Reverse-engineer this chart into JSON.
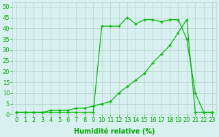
{
  "line1_x": [
    0,
    1,
    2,
    3,
    4,
    5,
    6,
    7,
    8,
    9,
    10,
    11,
    12,
    13,
    14,
    15,
    16,
    17,
    18,
    19,
    20,
    21,
    22,
    23
  ],
  "line1_y": [
    1,
    1,
    1,
    1,
    1,
    1,
    1,
    1,
    1,
    1,
    41,
    41,
    41,
    45,
    42,
    44,
    44,
    43,
    44,
    44,
    35,
    10,
    1,
    1
  ],
  "line2_x": [
    0,
    1,
    2,
    3,
    4,
    5,
    6,
    7,
    8,
    9,
    10,
    11,
    12,
    13,
    14,
    15,
    16,
    17,
    18,
    19,
    20,
    21,
    22,
    23
  ],
  "line2_y": [
    1,
    1,
    1,
    1,
    2,
    2,
    2,
    3,
    3,
    4,
    5,
    6,
    10,
    13,
    16,
    19,
    24,
    28,
    32,
    38,
    44,
    1,
    1,
    1
  ],
  "line_color": "#00bb00",
  "marker": "+",
  "markersize": 3.5,
  "linewidth": 0.9,
  "markeredgewidth": 1.0,
  "bg_color": "#d8f0f0",
  "grid_color": "#b8d0d0",
  "tick_color": "#00aa00",
  "label_color": "#00aa00",
  "xlabel": "Humidité relative (%)",
  "ylabel_ticks": [
    0,
    5,
    10,
    15,
    20,
    25,
    30,
    35,
    40,
    45,
    50
  ],
  "xlim": [
    -0.5,
    23.5
  ],
  "ylim": [
    0,
    52
  ],
  "xlabel_fontsize": 7.0,
  "tick_fontsize": 6.0,
  "figsize": [
    3.2,
    2.0
  ],
  "dpi": 100
}
